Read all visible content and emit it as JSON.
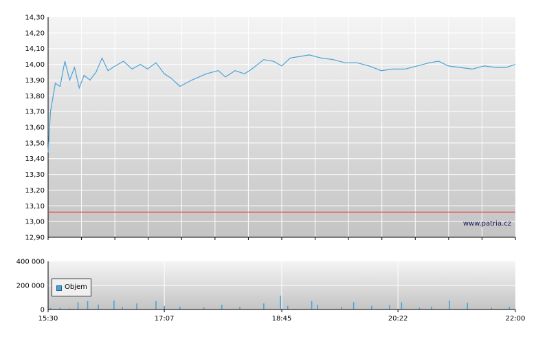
{
  "chart_data": [
    {
      "type": "line",
      "series": [
        {
          "values": [
            {
              "x": "15:30",
              "y": 13.44
            },
            {
              "x": "15:32",
              "y": 13.7
            },
            {
              "x": "15:36",
              "y": 13.88
            },
            {
              "x": "15:40",
              "y": 13.86
            },
            {
              "x": "15:44",
              "y": 14.02
            },
            {
              "x": "15:48",
              "y": 13.9
            },
            {
              "x": "15:52",
              "y": 13.98
            },
            {
              "x": "15:56",
              "y": 13.85
            },
            {
              "x": "16:00",
              "y": 13.93
            },
            {
              "x": "16:05",
              "y": 13.9
            },
            {
              "x": "16:10",
              "y": 13.95
            },
            {
              "x": "16:15",
              "y": 14.04
            },
            {
              "x": "16:20",
              "y": 13.96
            },
            {
              "x": "16:26",
              "y": 13.99
            },
            {
              "x": "16:33",
              "y": 14.02
            },
            {
              "x": "16:40",
              "y": 13.97
            },
            {
              "x": "16:47",
              "y": 14.0
            },
            {
              "x": "16:53",
              "y": 13.97
            },
            {
              "x": "17:00",
              "y": 14.01
            },
            {
              "x": "17:07",
              "y": 13.94
            },
            {
              "x": "17:13",
              "y": 13.91
            },
            {
              "x": "17:20",
              "y": 13.86
            },
            {
              "x": "17:30",
              "y": 13.9
            },
            {
              "x": "17:42",
              "y": 13.94
            },
            {
              "x": "17:52",
              "y": 13.96
            },
            {
              "x": "17:58",
              "y": 13.92
            },
            {
              "x": "18:06",
              "y": 13.96
            },
            {
              "x": "18:14",
              "y": 13.94
            },
            {
              "x": "18:20",
              "y": 13.97
            },
            {
              "x": "18:30",
              "y": 14.03
            },
            {
              "x": "18:38",
              "y": 14.02
            },
            {
              "x": "18:45",
              "y": 13.99
            },
            {
              "x": "18:52",
              "y": 14.04
            },
            {
              "x": "19:00",
              "y": 14.05
            },
            {
              "x": "19:08",
              "y": 14.06
            },
            {
              "x": "19:18",
              "y": 14.04
            },
            {
              "x": "19:28",
              "y": 14.03
            },
            {
              "x": "19:38",
              "y": 14.01
            },
            {
              "x": "19:48",
              "y": 14.01
            },
            {
              "x": "19:58",
              "y": 13.99
            },
            {
              "x": "20:08",
              "y": 13.96
            },
            {
              "x": "20:18",
              "y": 13.97
            },
            {
              "x": "20:28",
              "y": 13.97
            },
            {
              "x": "20:38",
              "y": 13.99
            },
            {
              "x": "20:48",
              "y": 14.01
            },
            {
              "x": "20:56",
              "y": 14.02
            },
            {
              "x": "21:04",
              "y": 13.99
            },
            {
              "x": "21:14",
              "y": 13.98
            },
            {
              "x": "21:24",
              "y": 13.97
            },
            {
              "x": "21:34",
              "y": 13.99
            },
            {
              "x": "21:44",
              "y": 13.98
            },
            {
              "x": "21:52",
              "y": 13.98
            },
            {
              "x": "22:00",
              "y": 14.0
            }
          ],
          "color": "#4aa3d8"
        },
        {
          "values": [
            {
              "x": "15:30",
              "y": 13.06
            },
            {
              "x": "22:00",
              "y": 13.06
            }
          ],
          "color": "#e34040"
        }
      ],
      "ylim": [
        12.9,
        14.3
      ],
      "y_ticks": [
        "14,30",
        "14,20",
        "14,10",
        "14,00",
        "13,90",
        "13,80",
        "13,70",
        "13,60",
        "13,50",
        "13,40",
        "13,30",
        "13,20",
        "13,10",
        "13,00",
        "12,90"
      ],
      "annotations": [
        "www.patria.cz"
      ],
      "grid": true
    },
    {
      "type": "bar",
      "series": [
        {
          "name": "Objem",
          "values": [
            {
              "x": "15:32",
              "y": 12000
            },
            {
              "x": "15:40",
              "y": 15000
            },
            {
              "x": "15:48",
              "y": 8000
            },
            {
              "x": "15:55",
              "y": 60000
            },
            {
              "x": "16:03",
              "y": 70000
            },
            {
              "x": "16:12",
              "y": 40000
            },
            {
              "x": "16:25",
              "y": 75000
            },
            {
              "x": "16:32",
              "y": 20000
            },
            {
              "x": "16:44",
              "y": 50000
            },
            {
              "x": "17:00",
              "y": 70000
            },
            {
              "x": "17:07",
              "y": 30000
            },
            {
              "x": "17:20",
              "y": 25000
            },
            {
              "x": "17:40",
              "y": 18000
            },
            {
              "x": "17:55",
              "y": 40000
            },
            {
              "x": "18:10",
              "y": 20000
            },
            {
              "x": "18:30",
              "y": 50000
            },
            {
              "x": "18:44",
              "y": 115000
            },
            {
              "x": "18:50",
              "y": 30000
            },
            {
              "x": "19:10",
              "y": 70000
            },
            {
              "x": "19:15",
              "y": 40000
            },
            {
              "x": "19:35",
              "y": 20000
            },
            {
              "x": "19:45",
              "y": 60000
            },
            {
              "x": "20:00",
              "y": 30000
            },
            {
              "x": "20:15",
              "y": 35000
            },
            {
              "x": "20:25",
              "y": 60000
            },
            {
              "x": "20:40",
              "y": 15000
            },
            {
              "x": "20:50",
              "y": 25000
            },
            {
              "x": "21:05",
              "y": 75000
            },
            {
              "x": "21:20",
              "y": 55000
            },
            {
              "x": "21:40",
              "y": 15000
            },
            {
              "x": "21:55",
              "y": 20000
            }
          ],
          "color": "#4aa3d8"
        }
      ],
      "ylim": [
        0,
        400000
      ],
      "y_ticks": [
        "400 000",
        "200 000",
        "0"
      ],
      "x_ticks": [
        "15:30",
        "17:07",
        "18:45",
        "20:22",
        "22:00"
      ],
      "legend": "top-left",
      "grid": true
    }
  ]
}
